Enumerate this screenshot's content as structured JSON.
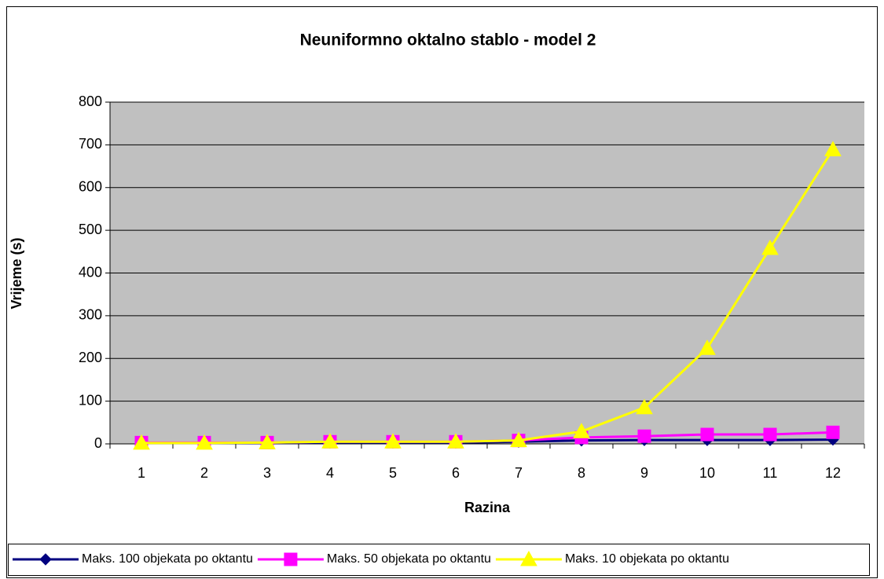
{
  "chart_data": {
    "type": "line",
    "title": "Neuniformno oktalno stablo - model 2",
    "x_label": "Razina",
    "y_label": "Vrijeme (s)",
    "categories": [
      "1",
      "2",
      "3",
      "4",
      "5",
      "6",
      "7",
      "8",
      "9",
      "10",
      "11",
      "12"
    ],
    "series": [
      {
        "name": "Maks. 100 objekata po oktantu",
        "color": "#000080",
        "marker": "diamond",
        "values": [
          2,
          2,
          2,
          3,
          3,
          3,
          5,
          8,
          9,
          9,
          9,
          10
        ]
      },
      {
        "name": "Maks. 50 objekata po oktantu",
        "color": "#ff00ff",
        "marker": "square",
        "values": [
          3,
          3,
          3,
          5,
          5,
          5,
          8,
          15,
          18,
          22,
          22,
          27
        ]
      },
      {
        "name": "Maks. 10 objekata po oktantu",
        "color": "#ffff00",
        "marker": "triangle",
        "values": [
          2,
          2,
          3,
          5,
          5,
          5,
          8,
          29,
          85,
          224,
          458,
          689
        ]
      }
    ],
    "ylim": [
      0,
      800
    ],
    "yticks": [
      0,
      100,
      200,
      300,
      400,
      500,
      600,
      700,
      800
    ],
    "grid": true,
    "plot_background": "#c0c0c0",
    "legend": "bottom"
  }
}
